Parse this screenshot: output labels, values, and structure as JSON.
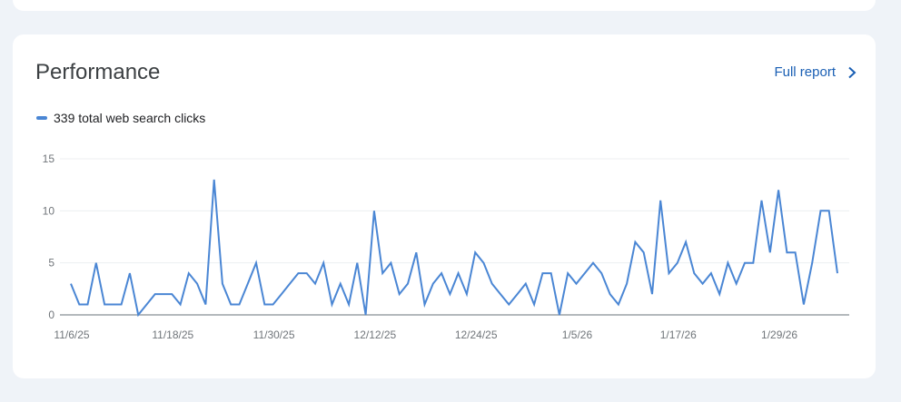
{
  "card": {
    "title": "Performance",
    "full_report_label": "Full report",
    "legend_label": "339 total web search clicks"
  },
  "colors": {
    "series": "#4a86d4",
    "link": "#1a5fb4",
    "grid": "#eceff1",
    "axis": "#9aa0a6"
  },
  "chart_data": {
    "type": "line",
    "title": "Performance",
    "xlabel": "",
    "ylabel": "",
    "ylim": [
      0,
      15
    ],
    "yticks": [
      0,
      5,
      10,
      15
    ],
    "grid": true,
    "legend_position": "top-left",
    "x_tick_labels": [
      {
        "index": 0,
        "label": "11/6/25"
      },
      {
        "index": 12,
        "label": "11/18/25"
      },
      {
        "index": 24,
        "label": "11/30/25"
      },
      {
        "index": 36,
        "label": "12/12/25"
      },
      {
        "index": 48,
        "label": "12/24/25"
      },
      {
        "index": 60,
        "label": "1/5/26"
      },
      {
        "index": 72,
        "label": "1/17/26"
      },
      {
        "index": 84,
        "label": "1/29/26"
      }
    ],
    "x_start": "11/6/25",
    "x_end": "2/5/26",
    "series": [
      {
        "name": "339 total web search clicks",
        "values": [
          3,
          1,
          1,
          5,
          1,
          1,
          1,
          4,
          0,
          1,
          2,
          2,
          2,
          1,
          4,
          3,
          1,
          13,
          3,
          1,
          1,
          3,
          5,
          1,
          1,
          2,
          3,
          4,
          4,
          3,
          5,
          1,
          3,
          1,
          5,
          0,
          10,
          4,
          5,
          2,
          3,
          6,
          1,
          3,
          4,
          2,
          4,
          2,
          6,
          5,
          3,
          2,
          1,
          2,
          3,
          1,
          4,
          4,
          0,
          4,
          3,
          4,
          5,
          4,
          2,
          1,
          3,
          7,
          6,
          2,
          11,
          4,
          5,
          7,
          4,
          3,
          4,
          2,
          5,
          3,
          5,
          5,
          11,
          6,
          12,
          6,
          6,
          1,
          5,
          10,
          10,
          4
        ]
      }
    ]
  }
}
